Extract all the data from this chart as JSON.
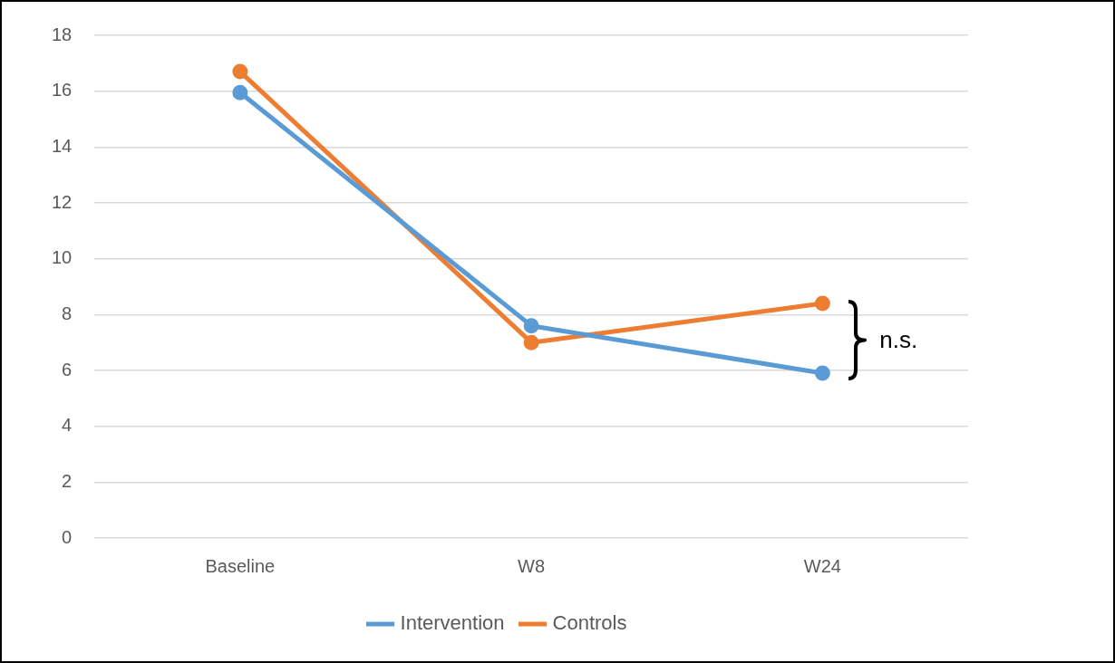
{
  "chart_data": {
    "type": "line",
    "categories": [
      "Baseline",
      "W8",
      "W24"
    ],
    "series": [
      {
        "name": "Intervention",
        "color": "#5b9bd5",
        "values": [
          15.95,
          7.6,
          5.9
        ]
      },
      {
        "name": "Controls",
        "color": "#ed7d31",
        "values": [
          16.7,
          7.0,
          8.4
        ]
      }
    ],
    "ylim": [
      0,
      18
    ],
    "yticks": [
      0,
      2,
      4,
      6,
      8,
      10,
      12,
      14,
      16,
      18
    ],
    "grid": "y",
    "legend": "bottom",
    "marker": "circle",
    "line_style": "solid",
    "annotations": [
      "n.s."
    ]
  }
}
